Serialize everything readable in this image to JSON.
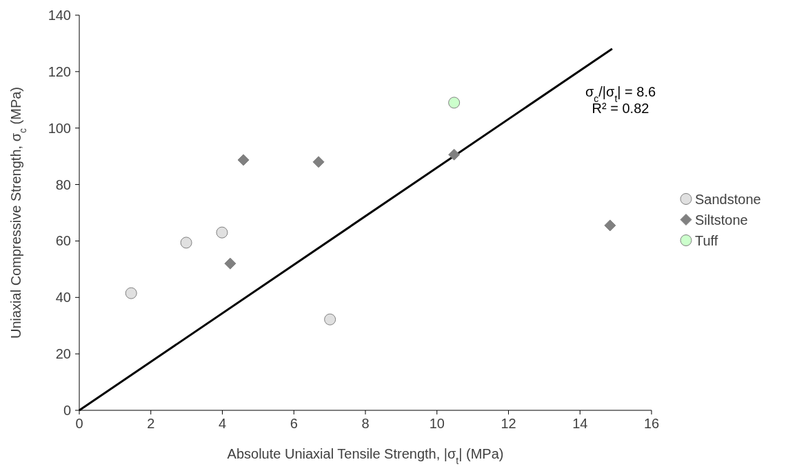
{
  "chart_data": {
    "type": "scatter",
    "xlabel": "Absolute Uniaxial Tensile Strength, |σ$_{t}$| (MPa)",
    "ylabel": "Uniaxial Compressive Strength, σ$_{c}$ (MPa)",
    "xlim": [
      0,
      16
    ],
    "ylim": [
      0,
      140
    ],
    "xticks": [
      0,
      2,
      4,
      6,
      8,
      10,
      12,
      14,
      16
    ],
    "yticks": [
      0,
      20,
      40,
      60,
      80,
      100,
      120,
      140
    ],
    "legend": "right",
    "annotations": [
      "σ$_{c}$/|σ$_{t}$| = 8.6",
      "R² = 0.82"
    ],
    "series": [
      {
        "type": "line",
        "color": "#000000",
        "x": [
          0,
          14.9
        ],
        "values": [
          0,
          128.1
        ],
        "line_style": "solid"
      },
      {
        "name": "Sandstone",
        "color": "#e0e0e0",
        "marker": "circle",
        "x": [
          1.45,
          2.99,
          3.99,
          7.01
        ],
        "values": [
          41.5,
          59.4,
          63,
          32.2
        ]
      },
      {
        "name": "Siltstone",
        "color": "#808080",
        "marker": "diamond",
        "x": [
          4.59,
          4.22,
          6.69,
          10.48,
          14.84
        ],
        "values": [
          88.7,
          52,
          88,
          90.6,
          65.5
        ]
      },
      {
        "name": "Tuff",
        "color": "#ccffcc",
        "marker": "circle",
        "x": [
          10.48
        ],
        "values": [
          109
        ]
      }
    ]
  }
}
